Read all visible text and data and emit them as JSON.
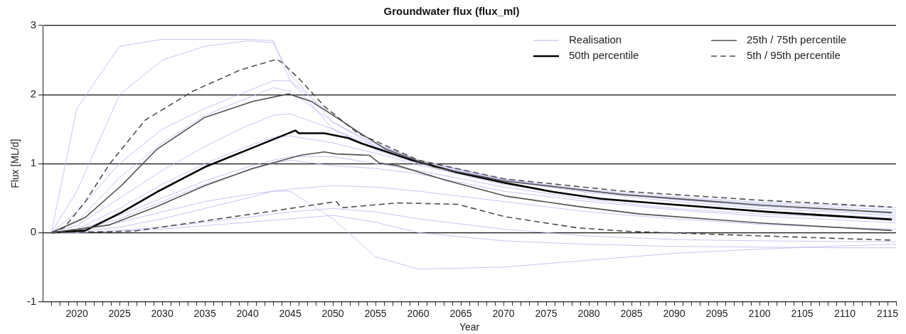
{
  "chart_data": {
    "type": "line",
    "title": "Groundwater flux (flux_ml)",
    "xlabel": "Year",
    "ylabel": "Flux [ML/d]",
    "xlim": [
      2016,
      2116
    ],
    "ylim": [
      -1,
      3
    ],
    "yticks": [
      -1,
      0,
      1,
      2,
      3
    ],
    "xticks": [
      {
        "value": 2017,
        "label": null
      },
      {
        "value": 2018,
        "label": null
      },
      {
        "value": 2019,
        "label": null
      },
      2020,
      {
        "value": 2021,
        "label": null
      },
      {
        "value": 2022,
        "label": null
      },
      {
        "value": 2023,
        "label": null
      },
      {
        "value": 2024,
        "label": null
      },
      2025,
      {
        "value": 2026,
        "label": null
      },
      {
        "value": 2027,
        "label": null
      },
      {
        "value": 2028,
        "label": null
      },
      {
        "value": 2029,
        "label": null
      },
      2030,
      {
        "value": 2031,
        "label": null
      },
      {
        "value": 2032,
        "label": null
      },
      {
        "value": 2033,
        "label": null
      },
      {
        "value": 2034,
        "label": null
      },
      2035,
      {
        "value": 2036,
        "label": null
      },
      {
        "value": 2037,
        "label": null
      },
      {
        "value": 2038,
        "label": null
      },
      {
        "value": 2039,
        "label": null
      },
      2040,
      {
        "value": 2041,
        "label": null
      },
      {
        "value": 2042,
        "label": null
      },
      {
        "value": 2043,
        "label": null
      },
      {
        "value": 2044,
        "label": null
      },
      2045,
      {
        "value": 2046,
        "label": null
      },
      {
        "value": 2047,
        "label": null
      },
      {
        "value": 2048,
        "label": null
      },
      {
        "value": 2049,
        "label": null
      },
      2050,
      {
        "value": 2051,
        "label": null
      },
      {
        "value": 2052,
        "label": null
      },
      {
        "value": 2053,
        "label": null
      },
      {
        "value": 2054,
        "label": null
      },
      2055,
      {
        "value": 2056,
        "label": null
      },
      {
        "value": 2057,
        "label": null
      },
      {
        "value": 2058,
        "label": null
      },
      {
        "value": 2059,
        "label": null
      },
      2060,
      {
        "value": 2061,
        "label": null
      },
      {
        "value": 2062,
        "label": null
      },
      {
        "value": 2063,
        "label": null
      },
      {
        "value": 2064,
        "label": null
      },
      2065,
      {
        "value": 2066,
        "label": null
      },
      {
        "value": 2067,
        "label": null
      },
      {
        "value": 2068,
        "label": null
      },
      {
        "value": 2069,
        "label": null
      },
      2070,
      {
        "value": 2071,
        "label": null
      },
      {
        "value": 2072,
        "label": null
      },
      {
        "value": 2073,
        "label": null
      },
      {
        "value": 2074,
        "label": null
      },
      2075,
      {
        "value": 2076,
        "label": null
      },
      {
        "value": 2077,
        "label": null
      },
      {
        "value": 2078,
        "label": null
      },
      {
        "value": 2079,
        "label": null
      },
      2080,
      {
        "value": 2081,
        "label": null
      },
      {
        "value": 2082,
        "label": null
      },
      {
        "value": 2083,
        "label": null
      },
      {
        "value": 2084,
        "label": null
      },
      2085,
      {
        "value": 2086,
        "label": null
      },
      {
        "value": 2087,
        "label": null
      },
      {
        "value": 2088,
        "label": null
      },
      {
        "value": 2089,
        "label": null
      },
      2090,
      {
        "value": 2091,
        "label": null
      },
      {
        "value": 2092,
        "label": null
      },
      {
        "value": 2093,
        "label": null
      },
      {
        "value": 2094,
        "label": null
      },
      2095,
      {
        "value": 2096,
        "label": null
      },
      {
        "value": 2097,
        "label": null
      },
      {
        "value": 2098,
        "label": null
      },
      {
        "value": 2099,
        "label": null
      },
      2100,
      {
        "value": 2101,
        "label": null
      },
      {
        "value": 2102,
        "label": null
      },
      {
        "value": 2103,
        "label": null
      },
      {
        "value": 2104,
        "label": null
      },
      2105,
      {
        "value": 2106,
        "label": null
      },
      {
        "value": 2107,
        "label": null
      },
      {
        "value": 2108,
        "label": null
      },
      {
        "value": 2109,
        "label": null
      },
      2110,
      {
        "value": 2111,
        "label": null
      },
      {
        "value": 2112,
        "label": null
      },
      {
        "value": 2113,
        "label": null
      },
      {
        "value": 2114,
        "label": null
      },
      2115,
      {
        "value": 2116,
        "label": null
      }
    ],
    "grid": "y",
    "legend": "top right",
    "marker": "none",
    "line_style": "solid",
    "x": [
      2017,
      2020,
      2025,
      2030,
      2035,
      2040,
      2043,
      2045,
      2050,
      2055,
      2060,
      2070,
      2080,
      2090,
      2100,
      2110,
      2116
    ],
    "series": [
      {
        "name": "Realisation",
        "color": "#b8b8f0",
        "values": [
          0,
          1.8,
          2.7,
          2.8,
          2.8,
          2.8,
          2.78,
          2.2,
          1.5,
          1.2,
          1.0,
          0.75,
          0.6,
          0.5,
          0.42,
          0.36,
          0.33
        ]
      },
      {
        "color": "#b8b8f0",
        "values": [
          0,
          0.6,
          2.0,
          2.5,
          2.7,
          2.78,
          2.75,
          2.3,
          1.6,
          1.25,
          1.02,
          0.76,
          0.6,
          0.48,
          0.39,
          0.33,
          0.3
        ]
      },
      {
        "color": "#b8b8f0",
        "values": [
          0,
          0.02,
          0.15,
          0.3,
          0.45,
          0.55,
          0.6,
          0.6,
          0.2,
          -0.35,
          -0.53,
          -0.5,
          -0.4,
          -0.3,
          -0.24,
          -0.19,
          -0.17
        ]
      },
      {
        "color": "#b8b8f0",
        "values": [
          0,
          0.3,
          1.0,
          1.5,
          1.8,
          2.05,
          2.2,
          2.2,
          1.7,
          1.3,
          1.05,
          0.77,
          0.62,
          0.52,
          0.44,
          0.39,
          0.36
        ]
      },
      {
        "color": "#b8b8f0",
        "values": [
          0,
          0.1,
          0.5,
          0.9,
          1.25,
          1.55,
          1.7,
          1.72,
          1.5,
          1.25,
          1.05,
          0.78,
          0.6,
          0.48,
          0.38,
          0.31,
          0.27
        ]
      },
      {
        "color": "#b8b8f0",
        "values": [
          0,
          0.02,
          0.2,
          0.45,
          0.7,
          0.9,
          1.0,
          1.05,
          0.97,
          0.93,
          0.85,
          0.6,
          0.45,
          0.33,
          0.24,
          0.18,
          0.14
        ]
      },
      {
        "color": "#b8b8f0",
        "values": [
          0,
          0.01,
          0.08,
          0.2,
          0.35,
          0.5,
          0.6,
          0.63,
          0.68,
          0.66,
          0.6,
          0.45,
          0.3,
          0.2,
          0.12,
          0.07,
          0.05
        ]
      },
      {
        "color": "#b8b8f0",
        "values": [
          0,
          0,
          0.03,
          0.08,
          0.15,
          0.22,
          0.27,
          0.3,
          0.35,
          0.3,
          0.2,
          0.05,
          -0.05,
          -0.1,
          -0.12,
          -0.13,
          -0.13
        ]
      },
      {
        "color": "#b8b8f0",
        "values": [
          0,
          0,
          0.02,
          0.05,
          0.1,
          0.15,
          0.18,
          0.2,
          0.25,
          0.15,
          0.0,
          -0.12,
          -0.17,
          -0.2,
          -0.21,
          -0.22,
          -0.22
        ]
      },
      {
        "color": "#b8b8f0",
        "values": [
          0,
          0.15,
          0.8,
          1.3,
          1.7,
          1.95,
          2.1,
          2.05,
          1.6,
          1.28,
          1.05,
          0.75,
          0.58,
          0.45,
          0.35,
          0.29,
          0.24
        ]
      },
      {
        "color": "#b8b8f0",
        "values": [
          0,
          0.05,
          0.35,
          0.7,
          1.0,
          1.25,
          1.38,
          1.4,
          1.3,
          1.15,
          0.98,
          0.7,
          0.52,
          0.4,
          0.31,
          0.25,
          0.21
        ]
      },
      {
        "color": "#b8b8f0",
        "values": [
          0,
          0.03,
          0.25,
          0.5,
          0.75,
          0.95,
          1.05,
          1.1,
          1.1,
          1.0,
          0.9,
          0.66,
          0.48,
          0.35,
          0.27,
          0.22,
          0.18
        ]
      },
      {
        "name": "50th percentile",
        "color": "#000000",
        "x": [
          2017,
          2021,
          2025.2,
          2029.4,
          2035,
          2040.6,
          2045.6,
          2046,
          2049,
          2051.8,
          2053.4,
          2059,
          2064.6,
          2070.2,
          2075.8,
          2081.4,
          2088.4,
          2101,
          2115.5
        ],
        "values": [
          0,
          0.03,
          0.29,
          0.59,
          0.95,
          1.23,
          1.48,
          1.44,
          1.44,
          1.37,
          1.29,
          1.06,
          0.87,
          0.72,
          0.59,
          0.49,
          0.42,
          0.3,
          0.19
        ]
      },
      {
        "name": "25th / 75th percentile",
        "color": "#505050",
        "x": [
          2017,
          2023.8,
          2029.4,
          2035,
          2040.6,
          2046.2,
          2049,
          2050.4,
          2054.3,
          2055.4,
          2057.6,
          2063.2,
          2070.2,
          2078.6,
          2086,
          2100,
          2115.5
        ],
        "values": [
          0,
          0.11,
          0.38,
          0.68,
          0.93,
          1.12,
          1.17,
          1.14,
          1.12,
          1.01,
          0.97,
          0.76,
          0.53,
          0.38,
          0.27,
          0.14,
          0.03
        ]
      },
      {
        "color": "#505050",
        "x": [
          2017,
          2021,
          2025.2,
          2029.4,
          2035,
          2040.6,
          2044.8,
          2047.5,
          2050.4,
          2053.2,
          2056.2,
          2061.8,
          2070,
          2084,
          2100,
          2115.5
        ],
        "values": [
          0,
          0.22,
          0.68,
          1.21,
          1.67,
          1.9,
          2.01,
          1.9,
          1.67,
          1.44,
          1.21,
          0.95,
          0.75,
          0.55,
          0.4,
          0.29
        ]
      },
      {
        "name": "5th / 95th percentile",
        "color": "#505050",
        "line_style": "dashed",
        "x": [
          2017,
          2026.6,
          2035,
          2043.4,
          2050.4,
          2051,
          2057.6,
          2064.6,
          2070.2,
          2078.6,
          2084.2,
          2098.2,
          2115.5
        ],
        "values": [
          0,
          0.02,
          0.17,
          0.32,
          0.45,
          0.36,
          0.43,
          0.41,
          0.23,
          0.07,
          0.02,
          -0.04,
          -0.11
        ]
      },
      {
        "color": "#505050",
        "line_style": "dashed",
        "x": [
          2017,
          2018.5,
          2021,
          2023.8,
          2028,
          2033.6,
          2039.2,
          2043.4,
          2044,
          2046.2,
          2049,
          2052.9,
          2056.2,
          2060,
          2070,
          2084,
          2100,
          2115.5
        ],
        "values": [
          0,
          0.07,
          0.45,
          0.99,
          1.63,
          2.05,
          2.36,
          2.51,
          2.47,
          2.21,
          1.83,
          1.44,
          1.26,
          1.05,
          0.78,
          0.6,
          0.47,
          0.37
        ]
      }
    ]
  }
}
